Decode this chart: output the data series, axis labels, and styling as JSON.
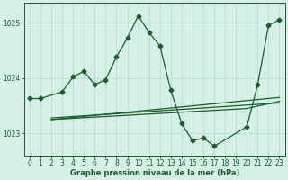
{
  "title": "Graphe pression niveau de la mer (hPa)",
  "background_color": "#d6f0e8",
  "grid_color": "#b8dfd0",
  "line_color": "#1a5c2a",
  "xlim": [
    -0.5,
    23.5
  ],
  "ylim": [
    1022.6,
    1025.35
  ],
  "yticks": [
    1023,
    1024,
    1025
  ],
  "xticks": [
    0,
    1,
    2,
    3,
    4,
    5,
    6,
    7,
    8,
    9,
    10,
    11,
    12,
    13,
    14,
    15,
    16,
    17,
    18,
    19,
    20,
    21,
    22,
    23
  ],
  "main_x": [
    0,
    1,
    3,
    4,
    5,
    6,
    7,
    8,
    9,
    10,
    11,
    12,
    13,
    14,
    15,
    16,
    17,
    20,
    21,
    22,
    23
  ],
  "main_y": [
    1023.63,
    1023.63,
    1023.75,
    1024.02,
    1024.12,
    1023.88,
    1023.97,
    1024.38,
    1024.72,
    1025.12,
    1024.82,
    1024.58,
    1023.78,
    1023.18,
    1022.87,
    1022.92,
    1022.77,
    1023.12,
    1023.88,
    1024.95,
    1025.05
  ],
  "line2_x": [
    2,
    23
  ],
  "line2_y": [
    1023.25,
    1023.65
  ],
  "line3_x": [
    2,
    20,
    23
  ],
  "line3_y": [
    1023.25,
    1023.45,
    1023.58
  ],
  "line4_x": [
    2,
    23
  ],
  "line4_y": [
    1023.28,
    1023.55
  ]
}
